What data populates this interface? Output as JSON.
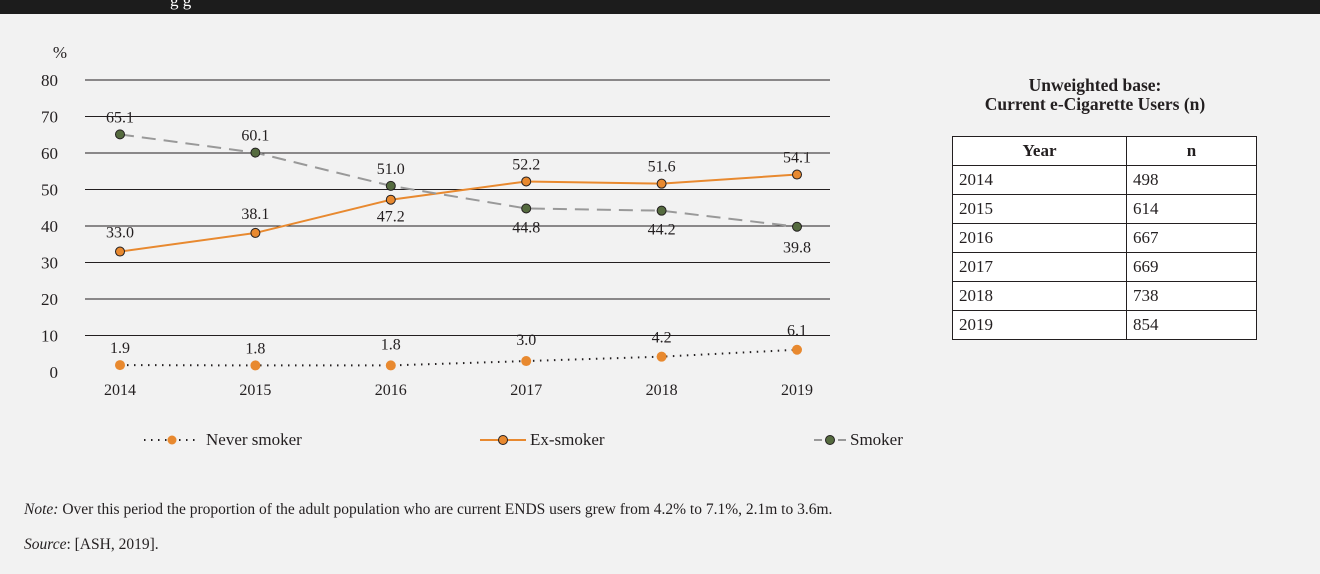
{
  "header": {
    "title": "g                    g"
  },
  "chart_data": {
    "type": "line",
    "ylabel": "%",
    "ylim": [
      0,
      80
    ],
    "yticks": [
      0,
      10,
      20,
      30,
      40,
      50,
      60,
      70,
      80
    ],
    "categories": [
      "2014",
      "2015",
      "2016",
      "2017",
      "2018",
      "2019"
    ],
    "series": [
      {
        "name": "Never smoker",
        "values": [
          1.9,
          1.8,
          1.8,
          3.0,
          4.2,
          6.1
        ],
        "labels": [
          "1.9",
          "1.8",
          "1.8",
          "3.0",
          "4.2",
          "6.1"
        ],
        "color": "#e8892f",
        "line_color": "#231f20",
        "line_style": "dotted"
      },
      {
        "name": "Ex-smoker",
        "values": [
          33.0,
          38.1,
          47.2,
          52.2,
          51.6,
          54.1
        ],
        "labels": [
          "33.0",
          "38.1",
          "47.2",
          "52.2",
          "51.6",
          "54.1"
        ],
        "color": "#e8892f",
        "line_color": "#e8892f",
        "line_style": "solid"
      },
      {
        "name": "Smoker",
        "values": [
          65.1,
          60.1,
          51.0,
          44.8,
          44.2,
          39.8
        ],
        "labels": [
          "65.1",
          "60.1",
          "51.0",
          "44.8",
          "44.2",
          "39.8"
        ],
        "color": "#556b3f",
        "line_color": "#999999",
        "line_style": "dashed"
      }
    ],
    "grid": true,
    "legend_position": "bottom"
  },
  "table": {
    "title_line1": "Unweighted base:",
    "title_line2": "Current e-Cigarette Users (n)",
    "headers": [
      "Year",
      "n"
    ],
    "rows": [
      [
        "2014",
        "498"
      ],
      [
        "2015",
        "614"
      ],
      [
        "2016",
        "667"
      ],
      [
        "2017",
        "669"
      ],
      [
        "2018",
        "738"
      ],
      [
        "2019",
        "854"
      ]
    ]
  },
  "note": {
    "label": "Note:",
    "text": " Over this period the proportion of the adult population who are current ENDS users grew from 4.2% to 7.1%, 2.1m to 3.6m."
  },
  "source": {
    "label": "Source",
    "text": ": [ASH, 2019]."
  }
}
